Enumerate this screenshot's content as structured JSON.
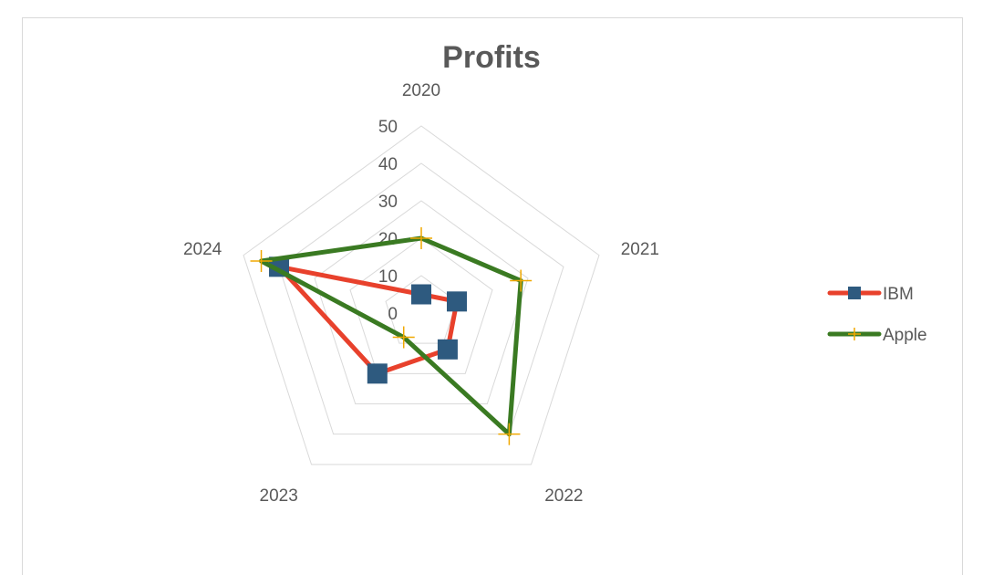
{
  "chart_data": {
    "type": "radar",
    "title": "Profits",
    "categories": [
      "2020",
      "2021",
      "2022",
      "2023",
      "2024"
    ],
    "rlim": [
      0,
      50
    ],
    "ticks": [
      "0",
      "10",
      "20",
      "30",
      "40",
      "50"
    ],
    "grid": true,
    "legend_position": "right",
    "series": [
      {
        "name": "IBM",
        "values": [
          5,
          10,
          12,
          20,
          40
        ],
        "color": "#e8412c",
        "marker": "square",
        "marker_color": "#2e5a7f"
      },
      {
        "name": "Apple",
        "values": [
          20,
          28,
          40,
          8,
          45
        ],
        "color": "#3a7a22",
        "marker": "plus",
        "marker_color": "#f0a800"
      }
    ]
  }
}
